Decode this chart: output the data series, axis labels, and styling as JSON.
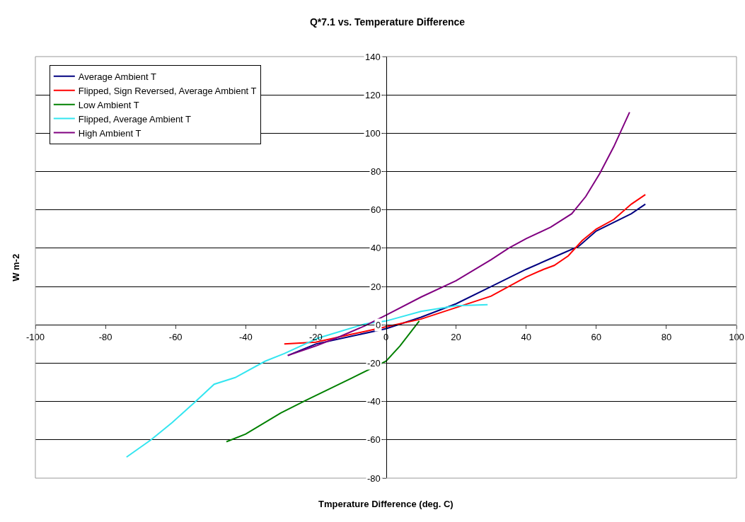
{
  "chart_data": {
    "type": "line",
    "title": "Q*7.1 vs. Temperature Difference",
    "xlabel": "Tmperature Difference (deg. C)",
    "ylabel": "W m-2",
    "xlim": [
      -100,
      100
    ],
    "xticks": [
      -100,
      -80,
      -60,
      -40,
      -20,
      0,
      20,
      40,
      60,
      80,
      100
    ],
    "ylim": [
      -80,
      140
    ],
    "yticks": [
      -80,
      -60,
      -40,
      -20,
      0,
      20,
      40,
      60,
      80,
      100,
      120,
      140
    ],
    "grid": "y",
    "legend": "top left",
    "marker": "none",
    "line_style": "solid",
    "series": [
      {
        "name": "Average Ambient T",
        "color": "#000080",
        "x": [
          -28,
          -20,
          -10,
          0,
          10,
          20,
          30,
          40,
          50,
          55,
          60,
          70,
          74
        ],
        "values": [
          -16,
          -10,
          -6,
          -2,
          4,
          11,
          20,
          29,
          37,
          41,
          49,
          58,
          63
        ]
      },
      {
        "name": "Flipped, Sign Reversed, Average Ambient T",
        "color": "#ff0000",
        "x": [
          -29,
          -20,
          -10,
          0,
          10,
          20,
          30,
          35,
          40,
          45,
          48,
          52,
          56,
          60,
          65,
          70,
          74
        ],
        "values": [
          -10,
          -9,
          -5,
          -1,
          3,
          9,
          15,
          20,
          25,
          29,
          31,
          36,
          44,
          50,
          55,
          63,
          68
        ]
      },
      {
        "name": "Low Ambient T",
        "color": "#008000",
        "x": [
          -45.5,
          -40,
          -30,
          -23,
          -10,
          0,
          4,
          9.5
        ],
        "values": [
          -61,
          -57,
          -46,
          -39.5,
          -28,
          -19,
          -11,
          2
        ]
      },
      {
        "name": "Flipped, Average Ambient T",
        "color": "#33e5f0",
        "x": [
          -74,
          -67,
          -61,
          -54,
          -49,
          -43,
          -34.5,
          -29,
          -19.5,
          -6,
          0,
          10,
          20,
          29
        ],
        "values": [
          -69,
          -60,
          -51,
          -39.5,
          -31,
          -27.5,
          -19,
          -15,
          -7,
          0.5,
          2,
          7,
          10,
          10.5
        ]
      },
      {
        "name": "High Ambient T",
        "color": "#800080",
        "x": [
          -28,
          -20,
          -13,
          -6,
          0,
          10,
          20,
          30,
          35,
          40,
          47,
          53,
          57,
          61,
          65,
          69.5
        ],
        "values": [
          -16,
          -11,
          -6,
          -0.5,
          5,
          14.5,
          23,
          34,
          40,
          45,
          51,
          58,
          67,
          79,
          93,
          111
        ]
      }
    ]
  }
}
